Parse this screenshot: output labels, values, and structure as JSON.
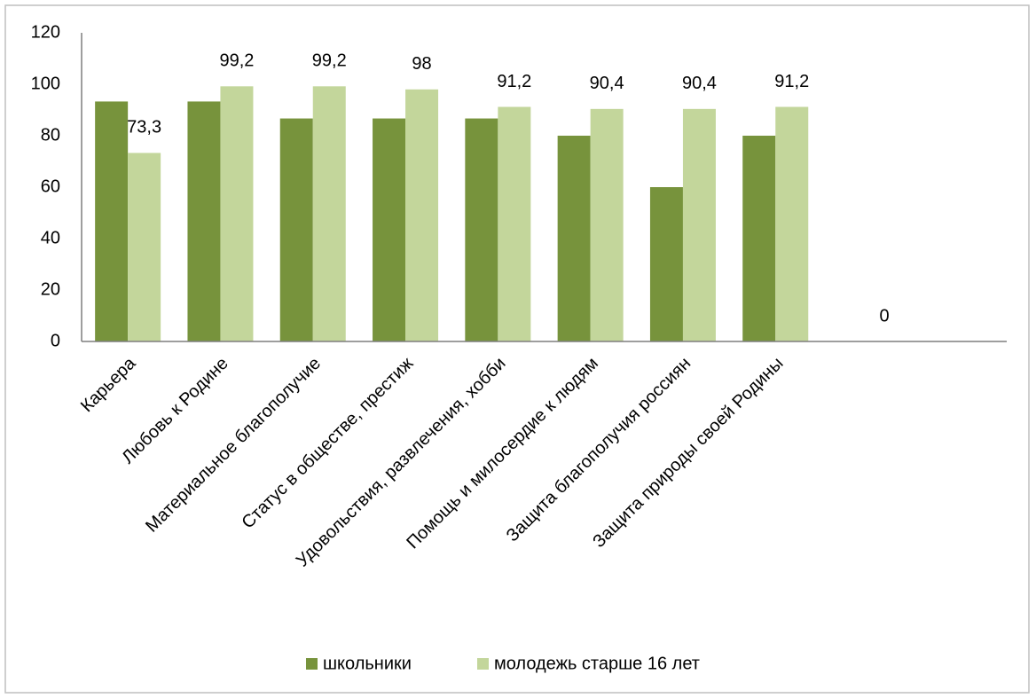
{
  "chart_data": {
    "type": "bar",
    "categories": [
      "Карьера",
      "Любовь к Родине",
      "Материальное благополучие",
      "Статус в обществе, престиж",
      "Удовольствия, развлечения, хобби",
      "Помощь  и  милосердие  к  людям",
      "Защита благополучия россиян",
      "Защита природы своей Родины",
      null,
      null
    ],
    "series": [
      {
        "name": "школьники",
        "color": "#77933c",
        "values": [
          93.3,
          93.3,
          86.7,
          86.7,
          86.7,
          80,
          60,
          80,
          null,
          null
        ]
      },
      {
        "name": "молодежь старше 16 лет",
        "color": "#c3d69b",
        "values": [
          73.3,
          99.2,
          99.2,
          98,
          91.2,
          90.4,
          90.4,
          91.2,
          0,
          null
        ],
        "value_labels": [
          "73,3",
          "99,2",
          "99,2",
          "98",
          "91,2",
          "90,4",
          "90,4",
          "91,2",
          "0",
          null
        ]
      }
    ],
    "ylim": [
      0,
      120
    ],
    "yticks": [
      0,
      20,
      40,
      60,
      80,
      100,
      120
    ],
    "grid": false,
    "legend": "bottom"
  }
}
